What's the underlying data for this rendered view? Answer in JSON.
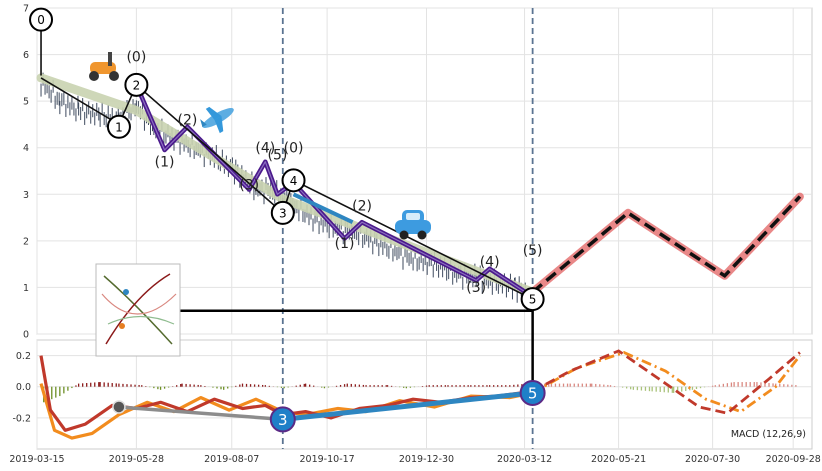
{
  "chart_data": [
    {
      "type": "line",
      "panel": "price",
      "xlim": [
        "2019-03-15",
        "2020-10-12"
      ],
      "ylim": [
        0,
        7
      ],
      "yticks": [
        0,
        1,
        2,
        3,
        4,
        5,
        6,
        7
      ],
      "xticks": [
        "2019-03-15",
        "2019-05-28",
        "2019-08-07",
        "2019-10-17",
        "2019-12-30",
        "2020-03-12",
        "2020-05-21",
        "2020-07-30",
        "2020-09-28"
      ],
      "grid": true,
      "vlines": [
        "2019-09-14",
        "2020-03-18"
      ],
      "series": [
        {
          "role": "price-bars",
          "x": [
            "2019-03-18",
            "2019-04-01",
            "2019-04-15",
            "2019-05-01",
            "2019-05-15",
            "2019-05-28",
            "2019-06-10",
            "2019-06-25",
            "2019-07-10",
            "2019-07-25",
            "2019-08-10",
            "2019-08-25",
            "2019-09-05",
            "2019-09-20",
            "2019-10-05",
            "2019-10-20",
            "2019-11-05",
            "2019-11-20",
            "2019-12-05",
            "2019-12-20",
            "2020-01-05",
            "2020-01-20",
            "2020-02-05",
            "2020-02-20",
            "2020-03-05",
            "2020-03-15"
          ],
          "y": [
            5.4,
            5.0,
            4.8,
            4.7,
            4.6,
            4.9,
            4.4,
            4.2,
            4.0,
            3.8,
            3.5,
            3.1,
            3.1,
            2.8,
            2.5,
            2.3,
            2.2,
            2.0,
            1.8,
            1.6,
            1.5,
            1.3,
            1.2,
            1.1,
            1.0,
            0.9
          ]
        },
        {
          "role": "trend-channel",
          "x": [
            "2019-03-18",
            "2019-05-28",
            "2019-09-14",
            "2020-03-18"
          ],
          "y": [
            5.5,
            4.8,
            2.9,
            0.9
          ]
        },
        {
          "role": "wave-primary",
          "x": [
            "2019-03-18",
            "2019-05-15",
            "2019-05-28",
            "2019-09-14",
            "2019-09-22",
            "2020-03-18"
          ],
          "y": [
            5.5,
            4.5,
            5.35,
            2.6,
            3.3,
            0.75
          ]
        },
        {
          "role": "wave-sub",
          "x": [
            "2019-05-28",
            "2019-06-18",
            "2019-07-05",
            "2019-08-20",
            "2019-09-01",
            "2019-09-10",
            "2019-09-22",
            "2019-10-30",
            "2019-11-12",
            "2020-02-05",
            "2020-02-15",
            "2020-03-18"
          ],
          "y": [
            5.35,
            3.95,
            4.45,
            3.1,
            3.7,
            3.0,
            3.25,
            2.05,
            2.4,
            1.15,
            1.4,
            0.8
          ]
        },
        {
          "role": "blue-segment",
          "x": [
            "2019-09-22",
            "2019-11-05"
          ],
          "y": [
            3.0,
            2.4
          ]
        },
        {
          "role": "projection",
          "x": [
            "2020-03-18",
            "2020-05-28",
            "2020-08-08",
            "2020-10-03"
          ],
          "y": [
            0.9,
            2.6,
            1.25,
            2.95
          ]
        },
        {
          "role": "reference-level",
          "x": [
            "2019-05-28",
            "2020-03-18"
          ],
          "y": [
            0.5,
            0.5
          ]
        }
      ],
      "annotations": [
        {
          "text": "0",
          "x": "2019-03-18",
          "y": 6.75,
          "style": "circled"
        },
        {
          "text": "1",
          "x": "2019-05-15",
          "y": 4.45,
          "style": "circled"
        },
        {
          "text": "2",
          "x": "2019-05-28",
          "y": 5.35,
          "style": "circled"
        },
        {
          "text": "3",
          "x": "2019-09-14",
          "y": 2.6,
          "style": "circled"
        },
        {
          "text": "4",
          "x": "2019-09-22",
          "y": 3.3,
          "style": "circled"
        },
        {
          "text": "5",
          "x": "2020-03-18",
          "y": 0.75,
          "style": "circled"
        },
        {
          "text": "(0)",
          "x": "2019-05-28",
          "y": 5.85
        },
        {
          "text": "(1)",
          "x": "2019-06-18",
          "y": 3.6
        },
        {
          "text": "(2)",
          "x": "2019-07-05",
          "y": 4.5
        },
        {
          "text": "(3)",
          "x": "2019-08-20",
          "y": 3.1
        },
        {
          "text": "(4)",
          "x": "2019-09-01",
          "y": 3.9
        },
        {
          "text": "(5)",
          "x": "2019-09-10",
          "y": 3.75
        },
        {
          "text": "(0)",
          "x": "2019-09-22",
          "y": 3.9
        },
        {
          "text": "(1)",
          "x": "2019-10-30",
          "y": 1.85
        },
        {
          "text": "(2)",
          "x": "2019-11-12",
          "y": 2.65
        },
        {
          "text": "(3)",
          "x": "2020-02-05",
          "y": 0.9
        },
        {
          "text": "(4)",
          "x": "2020-02-15",
          "y": 1.45
        },
        {
          "text": "(5)",
          "x": "2020-03-18",
          "y": 1.7
        }
      ],
      "icons": [
        "scooter-icon",
        "airplane-icon",
        "car-icon",
        "inset-thumbnail"
      ]
    },
    {
      "type": "line",
      "panel": "macd",
      "ylim": [
        -0.4,
        0.3
      ],
      "yticks": [
        -0.2,
        0.0,
        0.2
      ],
      "legend_text": "MACD (12,26,9)",
      "series": [
        {
          "role": "macd",
          "x": [
            "2019-03-18",
            "2019-03-25",
            "2019-04-05",
            "2019-04-20",
            "2019-05-10",
            "2019-05-28",
            "2019-06-15",
            "2019-07-05",
            "2019-07-25",
            "2019-08-15",
            "2019-09-01",
            "2019-09-14",
            "2019-10-01",
            "2019-10-20",
            "2019-11-10",
            "2019-12-01",
            "2019-12-20",
            "2020-01-10",
            "2020-02-01",
            "2020-02-20",
            "2020-03-18",
            "2020-04-15",
            "2020-05-21",
            "2020-06-20",
            "2020-07-20",
            "2020-08-10",
            "2020-09-10",
            "2020-10-03"
          ],
          "y": [
            0.2,
            -0.15,
            -0.28,
            -0.24,
            -0.12,
            -0.14,
            -0.1,
            -0.16,
            -0.08,
            -0.14,
            -0.12,
            -0.18,
            -0.16,
            -0.2,
            -0.14,
            -0.12,
            -0.08,
            -0.1,
            -0.07,
            -0.06,
            -0.03,
            0.1,
            0.23,
            0.05,
            -0.13,
            -0.17,
            0.05,
            0.22
          ]
        },
        {
          "role": "signal",
          "x": [
            "2019-03-18",
            "2019-03-28",
            "2019-04-10",
            "2019-04-25",
            "2019-05-15",
            "2019-06-05",
            "2019-06-25",
            "2019-07-15",
            "2019-08-05",
            "2019-08-25",
            "2019-09-14",
            "2019-10-01",
            "2019-10-25",
            "2019-11-15",
            "2019-12-10",
            "2020-01-05",
            "2020-02-01",
            "2020-03-01",
            "2020-03-18",
            "2020-04-20",
            "2020-05-25",
            "2020-06-25",
            "2020-07-25",
            "2020-08-20",
            "2020-09-15",
            "2020-10-03"
          ],
          "y": [
            0.02,
            -0.28,
            -0.33,
            -0.3,
            -0.18,
            -0.1,
            -0.16,
            -0.07,
            -0.15,
            -0.08,
            -0.16,
            -0.18,
            -0.14,
            -0.16,
            -0.09,
            -0.13,
            -0.06,
            -0.07,
            -0.04,
            0.12,
            0.22,
            0.1,
            -0.08,
            -0.16,
            0.0,
            0.2
          ]
        },
        {
          "role": "histogram",
          "x": [
            "2019-03-20",
            "2019-04-01",
            "2019-04-15",
            "2019-05-01",
            "2019-05-15",
            "2019-06-01",
            "2019-06-15",
            "2019-07-01",
            "2019-07-15",
            "2019-08-01",
            "2019-08-15",
            "2019-09-01",
            "2019-09-15",
            "2019-10-01",
            "2019-10-15",
            "2019-11-01",
            "2019-11-15",
            "2019-12-01",
            "2019-12-15",
            "2020-01-01",
            "2020-01-15",
            "2020-02-01",
            "2020-02-15",
            "2020-03-01",
            "2020-03-15",
            "2020-04-01",
            "2020-04-15",
            "2020-05-01",
            "2020-05-15",
            "2020-06-01",
            "2020-06-15",
            "2020-07-01",
            "2020-07-15",
            "2020-08-01",
            "2020-08-15",
            "2020-09-01",
            "2020-09-15",
            "2020-10-01"
          ],
          "y": [
            -0.1,
            -0.06,
            0.02,
            0.03,
            0.02,
            0.01,
            -0.02,
            0.02,
            0.01,
            -0.02,
            0.02,
            0.01,
            -0.01,
            0.02,
            -0.01,
            0.02,
            0.01,
            0.01,
            -0.01,
            0.01,
            0.01,
            0.01,
            0.01,
            0.01,
            0.02,
            0.02,
            0.02,
            0.02,
            0.01,
            -0.02,
            -0.03,
            -0.04,
            -0.02,
            0.01,
            0.03,
            0.03,
            0.02,
            0.01
          ]
        },
        {
          "role": "gray-segment",
          "x": [
            "2019-05-15",
            "2019-09-14"
          ],
          "y": [
            -0.13,
            -0.21
          ]
        },
        {
          "role": "blue-segment",
          "x": [
            "2019-09-14",
            "2020-03-18"
          ],
          "y": [
            -0.21,
            -0.04
          ]
        }
      ],
      "annotations": [
        {
          "text": "3",
          "x": "2019-09-14",
          "y": -0.21,
          "style": "filled-circle"
        },
        {
          "text": "5",
          "x": "2020-03-18",
          "y": -0.04,
          "style": "filled-circle"
        }
      ]
    }
  ]
}
